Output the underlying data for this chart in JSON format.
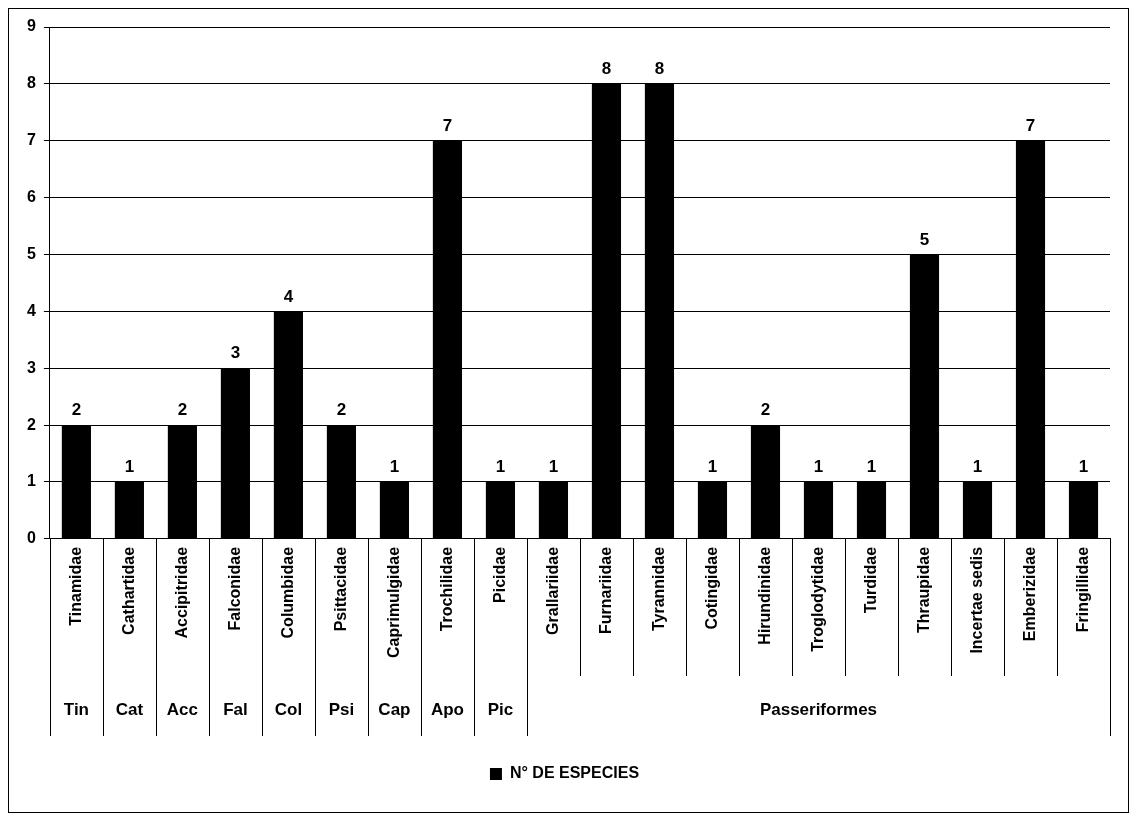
{
  "chart_data": {
    "type": "bar",
    "categories": [
      "Tinamidae",
      "Cathartidae",
      "Accipitridae",
      "Falconidae",
      "Columbidae",
      "Psittacidae",
      "Caprimulgidae",
      "Trochilidae",
      "Picidae",
      "Grallariidae",
      "Furnariidae",
      "Tyrannidae",
      "Cotingidae",
      "Hirundinidae",
      "Troglodytidae",
      "Turdidae",
      "Thraupidae",
      "Incertae sedis",
      "Emberizidae",
      "Fringillidae"
    ],
    "series": [
      {
        "name": "N° DE ESPECIES",
        "color": "#000000",
        "values": [
          2,
          1,
          2,
          3,
          4,
          2,
          1,
          7,
          1,
          1,
          8,
          8,
          1,
          2,
          1,
          1,
          5,
          1,
          7,
          1
        ]
      }
    ],
    "annotations": [
      "Tin",
      "Cat",
      "Acc",
      "Fal",
      "Col",
      "Psi",
      "Cap",
      "Apo",
      "Pic",
      "Passeriformes"
    ],
    "ylim": [
      0,
      9
    ],
    "yticks": [
      0,
      1,
      2,
      3,
      4,
      5,
      6,
      7,
      8,
      9
    ],
    "grid": "y",
    "legend": "bottom",
    "data_labels": true
  }
}
